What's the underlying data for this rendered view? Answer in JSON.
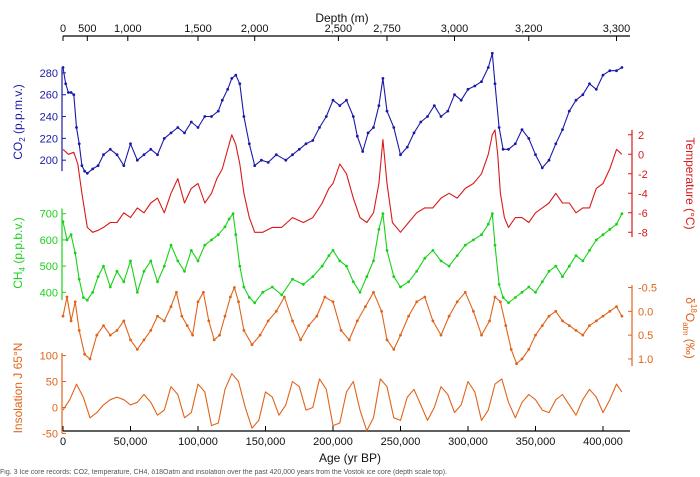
{
  "chart_data": {
    "type": "line",
    "xlabel_bottom": "Age (yr BP)",
    "xlabel_top": "Depth (m)",
    "x_range": [
      0,
      420000
    ],
    "x_ticks": [
      0,
      50000,
      100000,
      150000,
      200000,
      250000,
      300000,
      350000,
      400000
    ],
    "x_tick_labels": [
      "0",
      "50,000",
      "100,000",
      "150,000",
      "200,000",
      "250,000",
      "300,000",
      "350,000",
      "400,000"
    ],
    "depth_ticks": [
      {
        "label": "0",
        "age": 0
      },
      {
        "label": "500",
        "age": 18000
      },
      {
        "label": "1,000",
        "age": 48000
      },
      {
        "label": "1,500",
        "age": 100000
      },
      {
        "label": "2,000",
        "age": 142000
      },
      {
        "label": "2,500",
        "age": 204000
      },
      {
        "label": "2,750",
        "age": 240000
      },
      {
        "label": "3,000",
        "age": 290000
      },
      {
        "label": "3,200",
        "age": 345000
      },
      {
        "label": "3,300",
        "age": 410000
      }
    ],
    "series": [
      {
        "id": "co2",
        "name": "CO2",
        "axis_label_main": "CO",
        "axis_label_sub": "2",
        "axis_label_rest": " (p.p.m.v.)",
        "axis_side": "left",
        "color": "#1a1aa8",
        "axis_range": [
          180,
          290
        ],
        "ticks": [
          200,
          220,
          240,
          260,
          280
        ],
        "tick_labels": [
          "200",
          "220",
          "240",
          "260",
          "280"
        ],
        "x": [
          0,
          2000,
          4000,
          6000,
          8000,
          10000,
          12000,
          14000,
          16000,
          18000,
          22000,
          26000,
          30000,
          35000,
          40000,
          45000,
          50000,
          55000,
          60000,
          65000,
          70000,
          75000,
          80000,
          85000,
          90000,
          95000,
          100000,
          105000,
          110000,
          115000,
          118000,
          122000,
          125000,
          128000,
          131000,
          134000,
          138000,
          142000,
          147000,
          152000,
          158000,
          165000,
          170000,
          175000,
          180000,
          185000,
          190000,
          195000,
          200000,
          205000,
          210000,
          215000,
          218000,
          222000,
          226000,
          230000,
          234000,
          237000,
          240000,
          245000,
          250000,
          255000,
          260000,
          265000,
          270000,
          275000,
          280000,
          285000,
          290000,
          295000,
          300000,
          305000,
          310000,
          315000,
          318000,
          320000,
          323000,
          326000,
          330000,
          335000,
          340000,
          345000,
          350000,
          355000,
          360000,
          365000,
          370000,
          375000,
          380000,
          385000,
          390000,
          395000,
          400000,
          405000,
          410000,
          414000
        ],
        "y": [
          285,
          270,
          262,
          262,
          260,
          230,
          215,
          195,
          190,
          188,
          192,
          195,
          205,
          210,
          205,
          195,
          215,
          200,
          205,
          210,
          205,
          220,
          225,
          230,
          225,
          235,
          230,
          240,
          240,
          245,
          255,
          265,
          275,
          278,
          270,
          240,
          215,
          195,
          200,
          198,
          205,
          200,
          205,
          210,
          215,
          218,
          230,
          240,
          255,
          250,
          255,
          240,
          222,
          208,
          225,
          230,
          250,
          275,
          245,
          230,
          205,
          212,
          225,
          235,
          240,
          250,
          240,
          245,
          260,
          255,
          265,
          268,
          272,
          285,
          298,
          270,
          230,
          210,
          210,
          215,
          228,
          220,
          205,
          193,
          200,
          215,
          228,
          245,
          255,
          260,
          270,
          265,
          278,
          282,
          282,
          285
        ]
      },
      {
        "id": "temp",
        "name": "Temperature",
        "axis_label_main": "Temperature (°C)",
        "axis_side": "right",
        "color": "#d91a1a",
        "axis_range": [
          -9,
          3
        ],
        "ticks": [
          2,
          0,
          -2,
          -4,
          -6,
          -8
        ],
        "tick_labels": [
          "2",
          "0",
          "-2",
          "-4",
          "-6",
          "-8"
        ],
        "x": [
          0,
          4000,
          8000,
          11000,
          14000,
          18000,
          22000,
          26000,
          30000,
          35000,
          40000,
          45000,
          50000,
          55000,
          60000,
          65000,
          70000,
          75000,
          80000,
          85000,
          90000,
          95000,
          100000,
          105000,
          110000,
          114000,
          118000,
          122000,
          125000,
          128000,
          131000,
          134000,
          138000,
          142000,
          148000,
          155000,
          162000,
          170000,
          178000,
          185000,
          192000,
          197000,
          200000,
          205000,
          210000,
          215000,
          220000,
          225000,
          230000,
          234000,
          237000,
          240000,
          244000,
          250000,
          256000,
          262000,
          268000,
          274000,
          280000,
          286000,
          292000,
          298000,
          304000,
          310000,
          315000,
          318000,
          320000,
          322000,
          324000,
          327000,
          330000,
          335000,
          340000,
          345000,
          350000,
          355000,
          360000,
          365000,
          370000,
          375000,
          380000,
          385000,
          390000,
          395000,
          400000,
          405000,
          410000,
          414000
        ],
        "y": [
          0.5,
          0,
          0.2,
          -1,
          -4,
          -7.5,
          -8,
          -7.8,
          -7.5,
          -7,
          -7,
          -6,
          -6.5,
          -5.5,
          -6,
          -5,
          -4.5,
          -6,
          -4,
          -2.5,
          -5,
          -3.5,
          -3,
          -5,
          -4,
          -2.5,
          -1.5,
          0.5,
          2,
          1,
          -1,
          -4,
          -6.5,
          -8,
          -8,
          -7.5,
          -7.5,
          -6.5,
          -7,
          -6.5,
          -5,
          -3.5,
          -3,
          -1,
          -2,
          -4.5,
          -6.5,
          -7,
          -6,
          -3,
          1.5,
          -3,
          -7,
          -8,
          -7,
          -6,
          -5.5,
          -5.5,
          -4.5,
          -4,
          -4.5,
          -3.5,
          -3,
          -2,
          0,
          2,
          2.5,
          0,
          -4,
          -6.5,
          -7.5,
          -6.5,
          -6.5,
          -7,
          -6,
          -5.5,
          -5,
          -4,
          -5,
          -5,
          -6,
          -5.5,
          -5.5,
          -3.5,
          -3,
          -1.5,
          0.5,
          0
        ]
      },
      {
        "id": "ch4",
        "name": "CH4",
        "axis_label_main": "CH",
        "axis_label_sub": "4",
        "axis_label_rest": " (p.p.b.v.)",
        "axis_side": "left",
        "color": "#1ad11a",
        "axis_range": [
          340,
          760
        ],
        "ticks": [
          400,
          500,
          600,
          700
        ],
        "tick_labels": [
          "400",
          "500",
          "600",
          "700"
        ],
        "x": [
          0,
          3000,
          6000,
          9000,
          12000,
          15000,
          18000,
          22000,
          26000,
          30000,
          35000,
          40000,
          45000,
          50000,
          55000,
          60000,
          65000,
          70000,
          75000,
          80000,
          85000,
          90000,
          95000,
          100000,
          105000,
          110000,
          115000,
          120000,
          123000,
          126000,
          128000,
          131000,
          134000,
          138000,
          142000,
          148000,
          155000,
          162000,
          170000,
          178000,
          185000,
          192000,
          197000,
          200000,
          205000,
          210000,
          215000,
          220000,
          225000,
          230000,
          234000,
          237000,
          240000,
          245000,
          250000,
          256000,
          262000,
          268000,
          274000,
          280000,
          286000,
          292000,
          298000,
          304000,
          310000,
          315000,
          318000,
          320000,
          323000,
          326000,
          330000,
          335000,
          340000,
          345000,
          350000,
          355000,
          360000,
          365000,
          370000,
          375000,
          380000,
          385000,
          390000,
          395000,
          400000,
          405000,
          410000,
          414000
        ],
        "y": [
          670,
          600,
          620,
          550,
          450,
          380,
          370,
          400,
          460,
          500,
          420,
          480,
          440,
          520,
          400,
          480,
          520,
          440,
          500,
          580,
          520,
          480,
          560,
          520,
          580,
          600,
          620,
          650,
          680,
          700,
          620,
          500,
          420,
          380,
          360,
          400,
          420,
          390,
          450,
          430,
          460,
          500,
          540,
          560,
          520,
          500,
          440,
          400,
          460,
          520,
          640,
          700,
          560,
          460,
          420,
          440,
          480,
          530,
          560,
          520,
          500,
          540,
          580,
          600,
          620,
          660,
          700,
          580,
          430,
          380,
          360,
          380,
          400,
          420,
          400,
          440,
          480,
          500,
          460,
          500,
          540,
          520,
          560,
          600,
          620,
          640,
          660,
          700
        ]
      },
      {
        "id": "d18o",
        "name": "δ18Oatm",
        "axis_label_main": "δ",
        "axis_label_sup": "18",
        "axis_label_mid": "O",
        "axis_label_sub": "atm",
        "axis_label_rest": " (‰)",
        "axis_side": "right",
        "color": "#e0641a",
        "axis_range": [
          1.4,
          -0.7
        ],
        "axis_inverted": true,
        "ticks": [
          -0.5,
          0.0,
          0.5,
          1.0
        ],
        "tick_labels": [
          "-0.5",
          "0.0",
          "0.5",
          "1.0"
        ],
        "x": [
          0,
          3000,
          6000,
          9000,
          12000,
          16000,
          20000,
          25000,
          30000,
          35000,
          40000,
          45000,
          50000,
          55000,
          60000,
          65000,
          70000,
          75000,
          80000,
          84000,
          88000,
          92000,
          96000,
          100000,
          104000,
          108000,
          112000,
          116000,
          120000,
          124000,
          127000,
          130000,
          134000,
          140000,
          146000,
          152000,
          158000,
          164000,
          170000,
          176000,
          182000,
          188000,
          194000,
          200000,
          206000,
          212000,
          218000,
          224000,
          230000,
          236000,
          240000,
          245000,
          250000,
          256000,
          262000,
          268000,
          274000,
          280000,
          286000,
          292000,
          298000,
          304000,
          310000,
          316000,
          320000,
          324000,
          328000,
          332000,
          336000,
          340000,
          345000,
          350000,
          355000,
          360000,
          365000,
          370000,
          375000,
          380000,
          385000,
          390000,
          395000,
          400000,
          405000,
          410000,
          414000
        ],
        "y": [
          0.1,
          -0.3,
          0.2,
          -0.2,
          0.4,
          0.9,
          1.0,
          0.5,
          0.3,
          0.5,
          0.4,
          0.2,
          0.6,
          0.8,
          0.6,
          0.4,
          0.1,
          0.2,
          -0.1,
          -0.4,
          0.1,
          0.3,
          0.5,
          -0.2,
          -0.4,
          0.2,
          0.6,
          0.5,
          0.1,
          -0.3,
          -0.5,
          -0.2,
          0.4,
          0.7,
          0.5,
          0.2,
          0.0,
          -0.3,
          0.2,
          0.6,
          0.3,
          0.1,
          -0.3,
          -0.2,
          0.4,
          0.6,
          0.2,
          -0.1,
          -0.4,
          0.0,
          0.6,
          0.8,
          0.5,
          0.1,
          -0.2,
          -0.3,
          0.2,
          0.5,
          0.1,
          -0.2,
          -0.4,
          0.0,
          0.5,
          0.2,
          -0.3,
          -0.2,
          0.3,
          0.8,
          1.1,
          1.0,
          0.8,
          0.5,
          0.3,
          0.1,
          0.0,
          0.2,
          0.3,
          0.4,
          0.5,
          0.3,
          0.2,
          0.1,
          0.0,
          -0.1,
          0.1
        ]
      },
      {
        "id": "insolation",
        "name": "Insolation",
        "axis_label_main": "Insolation J 65°N",
        "axis_side": "left",
        "color": "#e0641a",
        "axis_range": [
          -55,
          130
        ],
        "ticks": [
          100,
          50,
          0,
          -50
        ],
        "tick_labels": [
          "100",
          "50",
          "0",
          "-50"
        ],
        "x": [
          0,
          5000,
          10000,
          15000,
          20000,
          25000,
          30000,
          35000,
          40000,
          45000,
          50000,
          55000,
          60000,
          65000,
          70000,
          75000,
          80000,
          85000,
          90000,
          95000,
          100000,
          105000,
          110000,
          115000,
          120000,
          125000,
          130000,
          135000,
          140000,
          145000,
          150000,
          155000,
          160000,
          165000,
          170000,
          175000,
          180000,
          185000,
          190000,
          195000,
          200000,
          205000,
          210000,
          215000,
          220000,
          225000,
          230000,
          235000,
          240000,
          245000,
          250000,
          255000,
          260000,
          265000,
          270000,
          275000,
          280000,
          285000,
          290000,
          295000,
          300000,
          305000,
          310000,
          315000,
          320000,
          325000,
          330000,
          335000,
          340000,
          345000,
          350000,
          355000,
          360000,
          365000,
          370000,
          375000,
          380000,
          385000,
          390000,
          395000,
          400000,
          405000,
          410000,
          414000
        ],
        "y": [
          -5,
          15,
          45,
          20,
          -20,
          -10,
          5,
          15,
          20,
          15,
          5,
          10,
          25,
          10,
          -15,
          -5,
          40,
          25,
          -20,
          -10,
          45,
          30,
          -35,
          -30,
          35,
          65,
          50,
          0,
          -40,
          -25,
          30,
          20,
          -15,
          5,
          50,
          40,
          -5,
          0,
          55,
          35,
          -35,
          -30,
          30,
          50,
          -5,
          -45,
          -20,
          55,
          40,
          -20,
          -25,
          20,
          35,
          5,
          -25,
          0,
          40,
          25,
          -10,
          5,
          50,
          30,
          -25,
          -5,
          45,
          55,
          10,
          -20,
          10,
          25,
          15,
          -5,
          -10,
          15,
          25,
          5,
          -15,
          15,
          35,
          20,
          -10,
          15,
          45,
          30
        ]
      }
    ]
  },
  "caption_fragment": "Fig. 3 Ice core records: CO2, temperature, CH4, δ18Oatm and insolation over the past 420,000 years from the Vostok ice core (depth scale top)."
}
